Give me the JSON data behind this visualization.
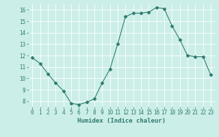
{
  "x": [
    0,
    1,
    2,
    3,
    4,
    5,
    6,
    7,
    8,
    9,
    10,
    11,
    12,
    13,
    14,
    15,
    16,
    17,
    18,
    19,
    20,
    21,
    22,
    23
  ],
  "y": [
    11.8,
    11.3,
    10.4,
    9.6,
    8.9,
    7.8,
    7.7,
    7.9,
    8.2,
    9.6,
    10.8,
    13.0,
    15.4,
    15.7,
    15.7,
    15.8,
    16.2,
    16.1,
    14.6,
    13.4,
    12.0,
    11.9,
    11.9,
    10.3
  ],
  "line_color": "#2d7a6e",
  "marker": "D",
  "marker_size": 2.5,
  "bg_color": "#cceee8",
  "grid_color": "#ffffff",
  "xlabel": "Humidex (Indice chaleur)",
  "xlim": [
    -0.5,
    23.5
  ],
  "ylim": [
    7.5,
    16.5
  ],
  "yticks": [
    8,
    9,
    10,
    11,
    12,
    13,
    14,
    15,
    16
  ],
  "xticks": [
    0,
    1,
    2,
    3,
    4,
    5,
    6,
    7,
    8,
    9,
    10,
    11,
    12,
    13,
    14,
    15,
    16,
    17,
    18,
    19,
    20,
    21,
    22,
    23
  ],
  "tick_fontsize": 5.5,
  "xlabel_fontsize": 6.5
}
